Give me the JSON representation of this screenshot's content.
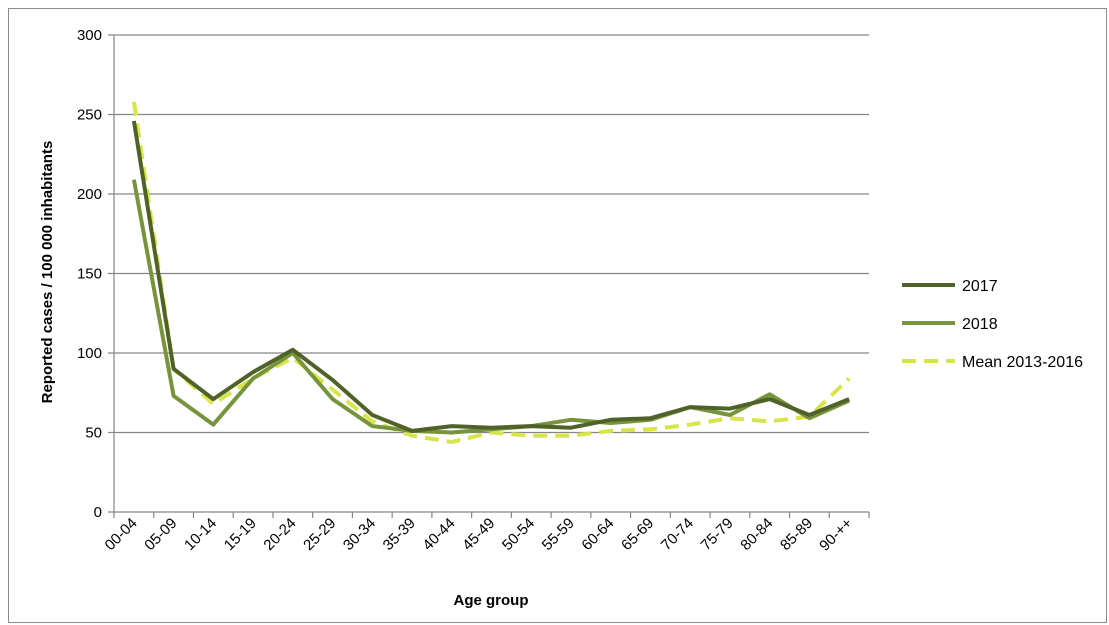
{
  "chart_data": {
    "type": "line",
    "xlabel": "Age group",
    "ylabel": "Reported cases / 100 000 inhabitants",
    "ylim": [
      0,
      300
    ],
    "yticks": [
      0,
      50,
      100,
      150,
      200,
      250,
      300
    ],
    "grid": "horizontal",
    "legend_position": "right",
    "categories": [
      "00-04",
      "05-09",
      "10-14",
      "15-19",
      "20-24",
      "25-29",
      "30-34",
      "35-39",
      "40-44",
      "45-49",
      "50-54",
      "55-59",
      "60-64",
      "65-69",
      "70-74",
      "75-79",
      "80-84",
      "85-89",
      "90-++"
    ],
    "series": [
      {
        "name": "2017",
        "color": "#4f6228",
        "dash": "solid",
        "values": [
          246,
          90,
          71,
          88,
          102,
          83,
          61,
          51,
          54,
          53,
          54,
          53,
          58,
          59,
          66,
          65,
          71,
          61,
          71
        ]
      },
      {
        "name": "2018",
        "color": "#77933c",
        "dash": "solid",
        "values": [
          209,
          73,
          55,
          84,
          100,
          71,
          54,
          51,
          50,
          52,
          54,
          58,
          56,
          58,
          66,
          61,
          74,
          59,
          70
        ]
      },
      {
        "name": "Mean 2013-2016",
        "color": "#d7e44a",
        "dash": "dashed",
        "values": [
          258,
          90,
          68,
          84,
          97,
          77,
          57,
          48,
          44,
          50,
          48,
          48,
          51,
          52,
          55,
          59,
          57,
          60,
          84
        ]
      }
    ]
  }
}
